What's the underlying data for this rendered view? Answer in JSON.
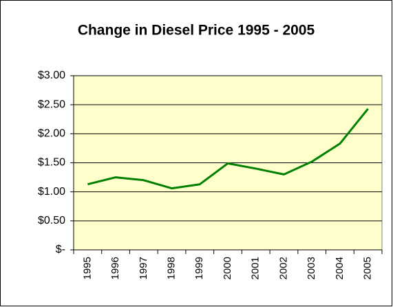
{
  "chart_data": {
    "type": "line",
    "title": "Change in Diesel Price 1995 - 2005",
    "categories": [
      "1995",
      "1996",
      "1997",
      "1998",
      "1999",
      "2000",
      "2001",
      "2002",
      "2003",
      "2004",
      "2005"
    ],
    "series": [
      {
        "name": "Diesel Price",
        "color": "#008000",
        "values": [
          1.13,
          1.25,
          1.2,
          1.06,
          1.13,
          1.49,
          1.4,
          1.3,
          1.52,
          1.83,
          2.43
        ]
      }
    ],
    "ylim": [
      0,
      3
    ],
    "yticks": [
      {
        "value": 0,
        "label": "$-"
      },
      {
        "value": 0.5,
        "label": "$0.50"
      },
      {
        "value": 1,
        "label": "$1.00"
      },
      {
        "value": 1.5,
        "label": "$1.50"
      },
      {
        "value": 2,
        "label": "$2.00"
      },
      {
        "value": 2.5,
        "label": "$2.50"
      },
      {
        "value": 3,
        "label": "$3.00"
      }
    ],
    "grid": true,
    "plot_background": "#FFFFCC"
  }
}
